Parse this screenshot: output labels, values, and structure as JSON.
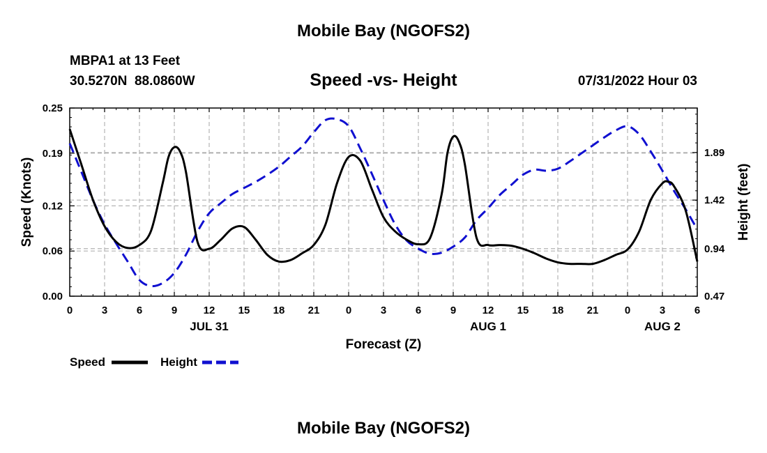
{
  "header": {
    "title": "Mobile Bay (NGOFS2)",
    "station": "MBPA1 at 13 Feet",
    "coords": "30.5270N  88.0860W",
    "datetime": "07/31/2022 Hour 03",
    "footer_title": "Mobile Bay (NGOFS2)"
  },
  "legend": {
    "speed_label": "Speed",
    "height_label": "Height"
  },
  "colors": {
    "speed": "#000000",
    "height": "#1010d0",
    "grid": "#b4b4b4"
  },
  "chart_data": {
    "type": "line",
    "title": "Speed -vs- Height",
    "xlabel": "Forecast (Z)",
    "ylabel_left": "Speed (Knots)",
    "ylabel_right": "Height (feet)",
    "xlim": [
      0,
      54
    ],
    "ylim_left": [
      0,
      0.25
    ],
    "ylim_right": [
      0.47,
      2.33
    ],
    "x_ticks": [
      0,
      3,
      6,
      9,
      12,
      15,
      18,
      21,
      24,
      27,
      30,
      33,
      36,
      39,
      42,
      45,
      48,
      51,
      54
    ],
    "x_tick_labels": [
      "0",
      "3",
      "6",
      "9",
      "12",
      "15",
      "18",
      "21",
      "0",
      "3",
      "6",
      "9",
      "12",
      "15",
      "18",
      "21",
      "0",
      "3",
      "6"
    ],
    "date_labels": [
      {
        "x": 12,
        "label": "JUL 31"
      },
      {
        "x": 36,
        "label": "AUG 1"
      },
      {
        "x": 51,
        "label": "AUG 2"
      }
    ],
    "y_left_ticks": [
      0.0,
      0.06,
      0.12,
      0.19,
      0.25
    ],
    "y_left_tick_labels": [
      "0.00",
      "0.06",
      "0.12",
      "0.19",
      "0.25"
    ],
    "y_right_ticks": [
      0.47,
      0.94,
      1.42,
      1.89
    ],
    "y_right_tick_labels": [
      "0.47",
      "0.94",
      "1.42",
      "1.89"
    ],
    "grid": true,
    "legend_position": "bottom-left",
    "series": [
      {
        "name": "Speed",
        "axis": "left",
        "style": "solid",
        "x": [
          0,
          1,
          2,
          3,
          4,
          5,
          6,
          7,
          8,
          8.5,
          9,
          9.5,
          10,
          11,
          12,
          13,
          14,
          15,
          16,
          17,
          18,
          19,
          20,
          21,
          22,
          23,
          24,
          25,
          26,
          27,
          28,
          29,
          30,
          31,
          32,
          32.5,
          33,
          33.5,
          34,
          35,
          36,
          37,
          38,
          39,
          40,
          41,
          42,
          43,
          44,
          45,
          46,
          47,
          48,
          49,
          50,
          51,
          51.5,
          52,
          53,
          54
        ],
        "values": [
          0.222,
          0.175,
          0.128,
          0.093,
          0.072,
          0.064,
          0.068,
          0.087,
          0.15,
          0.185,
          0.198,
          0.192,
          0.165,
          0.072,
          0.063,
          0.075,
          0.09,
          0.092,
          0.075,
          0.055,
          0.046,
          0.048,
          0.057,
          0.068,
          0.095,
          0.15,
          0.185,
          0.18,
          0.142,
          0.105,
          0.086,
          0.075,
          0.069,
          0.077,
          0.135,
          0.19,
          0.212,
          0.205,
          0.175,
          0.078,
          0.068,
          0.068,
          0.067,
          0.063,
          0.057,
          0.05,
          0.045,
          0.043,
          0.043,
          0.043,
          0.048,
          0.055,
          0.062,
          0.086,
          0.128,
          0.15,
          0.152,
          0.146,
          0.114,
          0.046
        ]
      },
      {
        "name": "Height",
        "axis": "right",
        "style": "dashed",
        "x": [
          0,
          1,
          2,
          3,
          4,
          5,
          6,
          7,
          8,
          9,
          10,
          11,
          12,
          13,
          14,
          15,
          16,
          17,
          18,
          19,
          20,
          21,
          22,
          23,
          24,
          25,
          26,
          27,
          28,
          29,
          30,
          31,
          32,
          33,
          34,
          35,
          36,
          37,
          38,
          39,
          40,
          41,
          42,
          43,
          44,
          45,
          46,
          47,
          48,
          49,
          50,
          51,
          52,
          53,
          54
        ],
        "values": [
          1.98,
          1.7,
          1.42,
          1.18,
          0.99,
          0.81,
          0.63,
          0.57,
          0.6,
          0.7,
          0.88,
          1.11,
          1.29,
          1.39,
          1.48,
          1.54,
          1.6,
          1.67,
          1.75,
          1.85,
          1.95,
          2.09,
          2.21,
          2.22,
          2.15,
          1.93,
          1.68,
          1.42,
          1.18,
          1.02,
          0.94,
          0.89,
          0.9,
          0.96,
          1.05,
          1.22,
          1.34,
          1.47,
          1.57,
          1.67,
          1.72,
          1.71,
          1.73,
          1.8,
          1.88,
          1.96,
          2.04,
          2.11,
          2.15,
          2.07,
          1.9,
          1.71,
          1.51,
          1.33,
          1.13
        ]
      }
    ]
  }
}
